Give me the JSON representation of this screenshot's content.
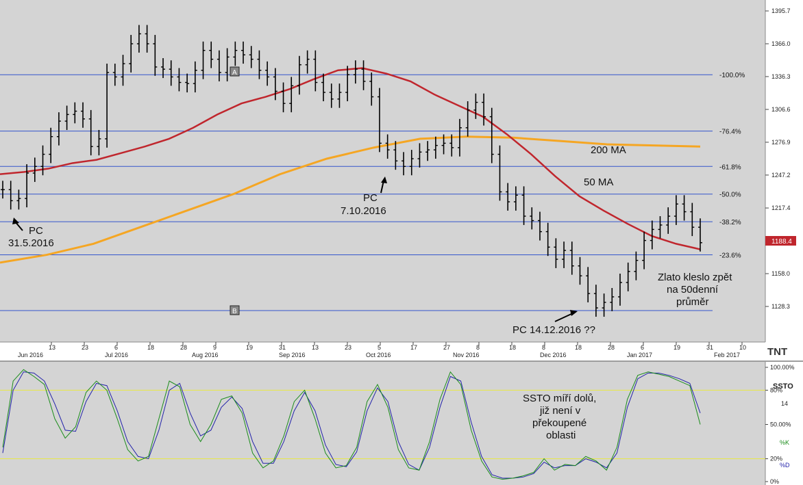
{
  "chart_data": [
    {
      "type": "ohlc",
      "price_axis": {
        "ticks": [
          "1395.7",
          "1366.0",
          "1336.3",
          "1306.6",
          "1276.9",
          "1247.2",
          "1217.4",
          "1188.4",
          "1158.0",
          "1128.3"
        ],
        "current": "1188.4"
      },
      "x_axis": {
        "day_ticks": [
          "13",
          "23",
          "6",
          "18",
          "28",
          "9",
          "19",
          "31",
          "13",
          "23",
          "5",
          "17",
          "27",
          "8",
          "18",
          "8",
          "18",
          "28",
          "6",
          "19",
          "31",
          "10"
        ],
        "month_labels": [
          "Jun 2016",
          "Jul 2016",
          "Aug 2016",
          "Sep 2016",
          "Oct 2016",
          "Nov 2016",
          "Dec 2016",
          "Jan 2017",
          "Feb 2017"
        ]
      },
      "price_series": [
        1234,
        1224,
        1226,
        1249,
        1255,
        1266,
        1282,
        1296,
        1302,
        1305,
        1298,
        1273,
        1280,
        1340,
        1336,
        1348,
        1366,
        1375,
        1366,
        1345,
        1343,
        1336,
        1331,
        1330,
        1342,
        1360,
        1352,
        1340,
        1354,
        1360,
        1356,
        1352,
        1342,
        1336,
        1323,
        1312,
        1328,
        1347,
        1352,
        1331,
        1322,
        1316,
        1322,
        1338,
        1343,
        1332,
        1318,
        1276,
        1270,
        1260,
        1255,
        1262,
        1268,
        1270,
        1274,
        1276,
        1272,
        1290,
        1306,
        1313,
        1300,
        1266,
        1232,
        1223,
        1229,
        1210,
        1206,
        1196,
        1182,
        1171,
        1179,
        1165,
        1156,
        1140,
        1127,
        1132,
        1137,
        1150,
        1160,
        1170,
        1188,
        1198,
        1202,
        1210,
        1221,
        1214,
        1200,
        1186
      ],
      "ma50": [
        1248,
        1250,
        1253,
        1258,
        1261,
        1267,
        1273,
        1280,
        1290,
        1302,
        1312,
        1318,
        1325,
        1334,
        1342,
        1344,
        1339,
        1332,
        1320,
        1310,
        1300,
        1284,
        1266,
        1246,
        1228,
        1215,
        1203,
        1192,
        1185,
        1180
      ],
      "ma200": [
        1168,
        1175,
        1185,
        1200,
        1215,
        1230,
        1248,
        1262,
        1272,
        1280,
        1282,
        1281,
        1278,
        1275,
        1274,
        1273
      ],
      "fib_levels": [
        {
          "label": "-100.0%",
          "value": 1338
        },
        {
          "label": "-76.4%",
          "value": 1287
        },
        {
          "label": "-61.8%",
          "value": 1255
        },
        {
          "label": "-50.0%",
          "value": 1230
        },
        {
          "label": "-38.2%",
          "value": 1205
        },
        {
          "label": "-23.6%",
          "value": 1175
        }
      ],
      "point_labels": [
        "A",
        "B"
      ],
      "ma_labels": [
        "200 MA",
        "50 MA"
      ],
      "annotations": {
        "pc1_line1": "PC",
        "pc1_line2": "31.5.2016",
        "pc2_line1": "PC",
        "pc2_line2": "7.10.2016",
        "pc3": "PC 14.12.2016 ??",
        "zlato1": "Zlato kleslo zpět",
        "zlato2": "na 50denní",
        "zlato3": "průměr"
      },
      "logo": "TNT",
      "colors": {
        "ma50": "#c0262d",
        "ma200": "#f5a623",
        "fib": "#3355cc",
        "bars": "#000000",
        "price_tag": "#c0262d"
      }
    },
    {
      "type": "line",
      "title": "SSTO",
      "period": "14",
      "y_ticks": [
        "100.00%",
        "80%",
        "50.00%",
        "20%",
        "0%"
      ],
      "k_label": "%K",
      "d_label": "%D",
      "overbought": 80,
      "oversold": 20,
      "k_values": [
        30,
        88,
        98,
        92,
        85,
        55,
        38,
        48,
        78,
        88,
        80,
        55,
        28,
        18,
        22,
        55,
        88,
        83,
        50,
        35,
        50,
        72,
        75,
        60,
        25,
        12,
        18,
        40,
        70,
        80,
        55,
        25,
        12,
        14,
        30,
        70,
        85,
        65,
        28,
        12,
        10,
        35,
        72,
        96,
        85,
        45,
        18,
        4,
        2,
        3,
        5,
        8,
        20,
        10,
        15,
        14,
        22,
        18,
        10,
        30,
        72,
        93,
        96,
        94,
        92,
        88,
        84,
        50
      ],
      "d_values": [
        25,
        80,
        96,
        95,
        88,
        68,
        45,
        44,
        70,
        86,
        84,
        62,
        35,
        22,
        20,
        45,
        80,
        86,
        60,
        40,
        45,
        65,
        74,
        64,
        35,
        16,
        16,
        35,
        62,
        78,
        62,
        32,
        15,
        13,
        26,
        62,
        82,
        70,
        35,
        15,
        10,
        30,
        65,
        92,
        88,
        52,
        22,
        6,
        3,
        3,
        4,
        7,
        17,
        12,
        14,
        14,
        20,
        17,
        12,
        25,
        65,
        90,
        95,
        95,
        93,
        90,
        86,
        60
      ],
      "annotation": {
        "line1": "SSTO míří dolů,",
        "line2": "již není v",
        "line3": "překoupené",
        "line4": "oblasti"
      },
      "colors": {
        "k": "#1a8c1a",
        "d": "#2222aa",
        "levels": "#e8e840"
      }
    }
  ]
}
